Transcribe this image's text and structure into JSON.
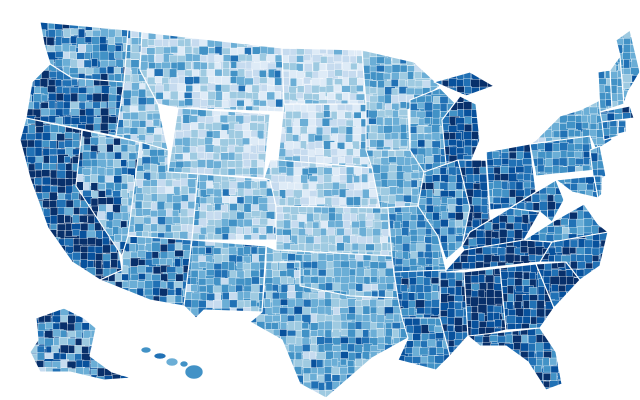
{
  "map": {
    "palette": [
      "#deebf7",
      "#c6dbef",
      "#9ecae1",
      "#6baed6",
      "#4292c6",
      "#2171b5",
      "#08519c",
      "#08306b"
    ],
    "regions": [
      {
        "id": "wa",
        "tones": [
          5,
          3,
          4,
          6,
          2
        ]
      },
      {
        "id": "or",
        "tones": [
          6,
          4,
          3,
          5,
          7
        ]
      },
      {
        "id": "ca",
        "tones": [
          7,
          6,
          5,
          7,
          4
        ]
      },
      {
        "id": "nv",
        "tones": [
          3,
          2,
          4,
          7
        ]
      },
      {
        "id": "id",
        "tones": [
          2,
          3,
          4,
          1
        ]
      },
      {
        "id": "mt",
        "tones": [
          1,
          2,
          3,
          0,
          4
        ]
      },
      {
        "id": "wy",
        "tones": [
          1,
          2,
          3,
          1
        ]
      },
      {
        "id": "ut",
        "tones": [
          2,
          3,
          1,
          4
        ]
      },
      {
        "id": "az",
        "tones": [
          4,
          5,
          7,
          3
        ]
      },
      {
        "id": "co",
        "tones": [
          2,
          3,
          1,
          4
        ]
      },
      {
        "id": "nm",
        "tones": [
          4,
          3,
          5,
          2
        ]
      },
      {
        "id": "nd",
        "tones": [
          0,
          1,
          2,
          1
        ]
      },
      {
        "id": "sd",
        "tones": [
          1,
          0,
          2,
          3
        ]
      },
      {
        "id": "ne",
        "tones": [
          1,
          2,
          0,
          3
        ]
      },
      {
        "id": "ks",
        "tones": [
          2,
          1,
          3,
          2
        ]
      },
      {
        "id": "ok",
        "tones": [
          3,
          4,
          2,
          3
        ]
      },
      {
        "id": "tx",
        "tones": [
          3,
          4,
          2,
          5,
          3
        ]
      },
      {
        "id": "mn",
        "tones": [
          2,
          3,
          4,
          2
        ]
      },
      {
        "id": "ia",
        "tones": [
          2,
          3,
          4,
          3
        ]
      },
      {
        "id": "mo",
        "tones": [
          4,
          5,
          3,
          4
        ]
      },
      {
        "id": "ar",
        "tones": [
          4,
          5,
          6,
          5
        ]
      },
      {
        "id": "la",
        "tones": [
          5,
          4,
          6,
          5
        ]
      },
      {
        "id": "wi",
        "tones": [
          4,
          3,
          5,
          4
        ]
      },
      {
        "id": "mi",
        "tones": [
          6,
          7,
          5,
          6
        ]
      },
      {
        "id": "il",
        "tones": [
          4,
          5,
          3,
          6
        ]
      },
      {
        "id": "in",
        "tones": [
          6,
          5,
          7,
          6
        ]
      },
      {
        "id": "oh",
        "tones": [
          5,
          6,
          4,
          6
        ]
      },
      {
        "id": "ky",
        "tones": [
          6,
          7,
          5,
          6
        ]
      },
      {
        "id": "tn",
        "tones": [
          6,
          7,
          5,
          7
        ]
      },
      {
        "id": "ms",
        "tones": [
          5,
          6,
          7,
          6
        ]
      },
      {
        "id": "al",
        "tones": [
          7,
          6,
          5,
          7
        ]
      },
      {
        "id": "ga",
        "tones": [
          6,
          5,
          7,
          6
        ]
      },
      {
        "id": "fl",
        "tones": [
          5,
          6,
          4,
          7
        ]
      },
      {
        "id": "sc",
        "tones": [
          6,
          7,
          5,
          6
        ]
      },
      {
        "id": "nc",
        "tones": [
          6,
          5,
          7,
          6
        ]
      },
      {
        "id": "va",
        "tones": [
          4,
          5,
          3,
          6
        ]
      },
      {
        "id": "wv",
        "tones": [
          5,
          6,
          4,
          5
        ]
      },
      {
        "id": "pa",
        "tones": [
          4,
          5,
          3,
          4
        ]
      },
      {
        "id": "ny",
        "tones": [
          3,
          4,
          2,
          4
        ]
      },
      {
        "id": "vt",
        "tones": [
          3,
          4
        ]
      },
      {
        "id": "nh",
        "tones": [
          4,
          3
        ]
      },
      {
        "id": "me",
        "tones": [
          4,
          3,
          5,
          4
        ]
      },
      {
        "id": "ma",
        "tones": [
          5,
          4,
          6
        ]
      },
      {
        "id": "ct",
        "tones": [
          4,
          5
        ]
      },
      {
        "id": "nj",
        "tones": [
          5,
          4
        ]
      },
      {
        "id": "md",
        "tones": [
          4,
          5
        ]
      },
      {
        "id": "de",
        "tones": [
          4
        ]
      },
      {
        "id": "ri",
        "tones": [
          5
        ]
      },
      {
        "id": "ak",
        "tones": [
          6,
          2,
          3,
          7
        ]
      },
      {
        "id": "hi",
        "tones": [
          4,
          5,
          3,
          4
        ]
      }
    ]
  }
}
